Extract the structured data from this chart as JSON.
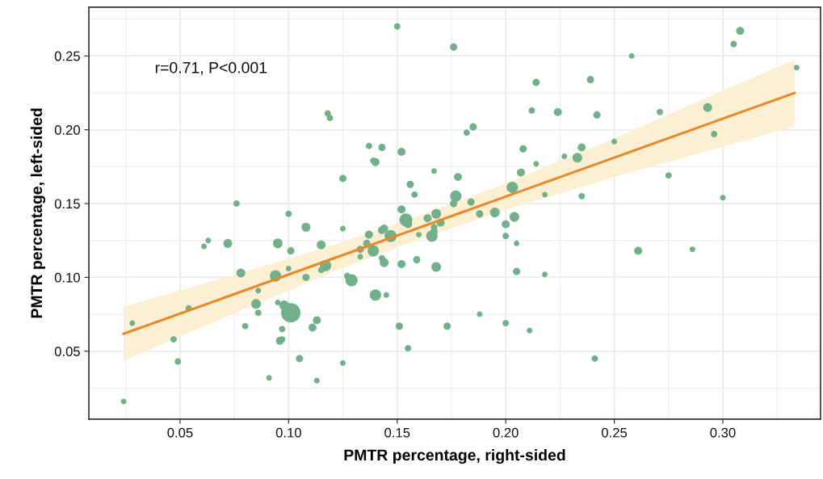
{
  "chart_data": {
    "type": "bubble",
    "xlabel": "PMTR percentage, right-sided",
    "ylabel": "PMTR percentage, left-sided",
    "annotations": [
      "r=0.71, P<0.001"
    ],
    "xlim": [
      0.008,
      0.345
    ],
    "ylim": [
      0.004,
      0.283
    ],
    "xticks": [
      0.05,
      {
        "value": 0.1,
        "label": "0.10"
      },
      0.15,
      {
        "value": 0.2,
        "label": "0.20"
      },
      0.25,
      {
        "value": 0.3,
        "label": "0.30"
      }
    ],
    "yticks": [
      0.05,
      {
        "value": 0.1,
        "label": "0.10"
      },
      0.15,
      {
        "value": 0.2,
        "label": "0.20"
      },
      0.25
    ],
    "grid": true,
    "series": [
      {
        "marker": "circle",
        "color": "#72b08c",
        "x": [
          0.024,
          0.028,
          0.047,
          0.049,
          0.054,
          0.061,
          0.063,
          0.072,
          0.076,
          0.078,
          0.08,
          0.086,
          0.085,
          0.086,
          0.091,
          0.094,
          0.095,
          0.095,
          0.096,
          0.097,
          0.097,
          0.098,
          0.1,
          0.1,
          0.101,
          0.101,
          0.105,
          0.108,
          0.108,
          0.111,
          0.113,
          0.113,
          0.115,
          0.115,
          0.117,
          0.118,
          0.119,
          0.125,
          0.125,
          0.125,
          0.127,
          0.129,
          0.133,
          0.133,
          0.136,
          0.137,
          0.137,
          0.139,
          0.139,
          0.14,
          0.14,
          0.143,
          0.143,
          0.144,
          0.143,
          0.144,
          0.145,
          0.147,
          0.15,
          0.151,
          0.152,
          0.152,
          0.152,
          0.154,
          0.155,
          0.155,
          0.156,
          0.158,
          0.159,
          0.16,
          0.164,
          0.166,
          0.167,
          0.167,
          0.167,
          0.168,
          0.168,
          0.17,
          0.173,
          0.176,
          0.176,
          0.177,
          0.178,
          0.182,
          0.184,
          0.185,
          0.188,
          0.188,
          0.195,
          0.2,
          0.2,
          0.2,
          0.203,
          0.204,
          0.205,
          0.205,
          0.207,
          0.208,
          0.211,
          0.212,
          0.214,
          0.214,
          0.218,
          0.218,
          0.224,
          0.227,
          0.233,
          0.235,
          0.235,
          0.239,
          0.241,
          0.242,
          0.25,
          0.258,
          0.261,
          0.271,
          0.275,
          0.286,
          0.293,
          0.296,
          0.3,
          0.305,
          0.308,
          0.334
        ],
        "values": [
          0.016,
          0.069,
          0.058,
          0.043,
          0.079,
          0.121,
          0.125,
          0.123,
          0.15,
          0.103,
          0.067,
          0.091,
          0.082,
          0.076,
          0.032,
          0.101,
          0.123,
          0.083,
          0.057,
          0.058,
          0.065,
          0.081,
          0.143,
          0.106,
          0.118,
          0.076,
          0.045,
          0.1,
          0.134,
          0.066,
          0.071,
          0.03,
          0.105,
          0.122,
          0.108,
          0.211,
          0.208,
          0.167,
          0.133,
          0.042,
          0.101,
          0.098,
          0.119,
          0.114,
          0.123,
          0.189,
          0.129,
          0.179,
          0.118,
          0.088,
          0.178,
          0.188,
          0.132,
          0.133,
          0.113,
          0.11,
          0.088,
          0.128,
          0.27,
          0.067,
          0.146,
          0.185,
          0.109,
          0.139,
          0.136,
          0.052,
          0.163,
          0.156,
          0.112,
          0.129,
          0.14,
          0.128,
          0.172,
          0.131,
          0.134,
          0.107,
          0.143,
          0.137,
          0.067,
          0.256,
          0.15,
          0.155,
          0.168,
          0.198,
          0.151,
          0.202,
          0.075,
          0.143,
          0.144,
          0.136,
          0.128,
          0.069,
          0.161,
          0.141,
          0.104,
          0.123,
          0.171,
          0.187,
          0.064,
          0.213,
          0.232,
          0.177,
          0.156,
          0.102,
          0.212,
          0.182,
          0.181,
          0.188,
          0.155,
          0.234,
          0.045,
          0.21,
          0.192,
          0.25,
          0.118,
          0.212,
          0.169,
          0.119,
          0.215,
          0.197,
          0.154,
          0.258,
          0.267,
          0.242
        ],
        "sizes": [
          0.085,
          0.085,
          0.11,
          0.11,
          0.11,
          0.085,
          0.085,
          0.21,
          0.11,
          0.21,
          0.11,
          0.085,
          0.25,
          0.11,
          0.085,
          0.34,
          0.25,
          0.085,
          0.17,
          0.11,
          0.11,
          0.25,
          0.11,
          0.085,
          0.14,
          1,
          0.14,
          0.14,
          0.21,
          0.17,
          0.17,
          0.085,
          0.11,
          0.21,
          0.34,
          0.11,
          0.11,
          0.14,
          0.085,
          0.085,
          0.11,
          0.39,
          0.14,
          0.085,
          0.14,
          0.11,
          0.17,
          0.11,
          0.34,
          0.34,
          0.17,
          0.14,
          0.17,
          0.17,
          0.11,
          0.21,
          0.085,
          0.39,
          0.11,
          0.14,
          0.17,
          0.17,
          0.17,
          0.44,
          0.17,
          0.11,
          0.14,
          0.11,
          0.14,
          0.085,
          0.17,
          0.34,
          0.085,
          0.14,
          0.11,
          0.25,
          0.25,
          0.17,
          0.14,
          0.14,
          0.14,
          0.34,
          0.17,
          0.11,
          0.14,
          0.14,
          0.085,
          0.14,
          0.25,
          0.17,
          0.11,
          0.11,
          0.34,
          0.25,
          0.14,
          0.085,
          0.17,
          0.14,
          0.085,
          0.11,
          0.14,
          0.085,
          0.085,
          0.085,
          0.17,
          0.085,
          0.25,
          0.17,
          0.11,
          0.14,
          0.11,
          0.14,
          0.085,
          0.085,
          0.17,
          0.11,
          0.11,
          0.085,
          0.21,
          0.11,
          0.085,
          0.11,
          0.17,
          0.085
        ]
      },
      {
        "type": "line",
        "color": "#e5892a",
        "x": [
          0.024,
          0.08,
          0.12,
          0.16,
          0.2,
          0.25,
          0.3,
          0.333
        ],
        "values": [
          0.0618,
          0.0913,
          0.1125,
          0.1336,
          0.1547,
          0.1811,
          0.2075,
          0.2249
        ],
        "lower": [
          0.0434,
          0.0788,
          0.1035,
          0.1256,
          0.1457,
          0.1681,
          0.1885,
          0.2023
        ],
        "upper": [
          0.0802,
          0.1038,
          0.1215,
          0.1416,
          0.1637,
          0.1941,
          0.2265,
          0.2475
        ]
      }
    ]
  }
}
